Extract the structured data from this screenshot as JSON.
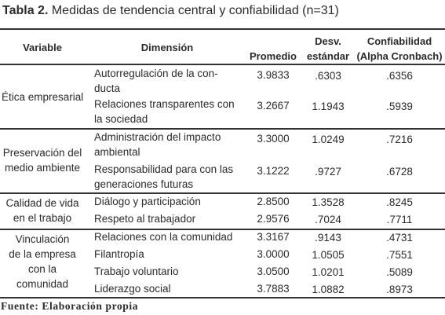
{
  "title": {
    "label": "Tabla 2.",
    "text": "Medidas de tendencia central y confiabilidad (n=31)"
  },
  "headers": {
    "variable": "Variable",
    "dimension": "Dimensión",
    "promedio": "Promedio",
    "desv_line1": "Desv.",
    "desv_line2": "estándar",
    "conf_line1": "Confiabilidad",
    "conf_line2": "(Alpha Cronbach)"
  },
  "groups": [
    {
      "variable": [
        "Ética empresarial"
      ],
      "rows": [
        {
          "dimension": [
            "Autorregulación de la con-",
            "ducta"
          ],
          "promedio": "3.9833",
          "desv": ".6303",
          "conf": ".6356"
        },
        {
          "dimension": [
            "Relaciones transparentes con",
            "la sociedad"
          ],
          "promedio": "3.2667",
          "desv": "1.1943",
          "conf": ".5939"
        }
      ]
    },
    {
      "variable": [
        "Preservación del",
        "medio ambiente"
      ],
      "rows": [
        {
          "dimension": [
            "Administración del impacto",
            "ambiental"
          ],
          "promedio": "3.3000",
          "desv": "1.0249",
          "conf": ".7216"
        },
        {
          "dimension": [
            "Responsabilidad para con las",
            "generaciones futuras"
          ],
          "promedio": "3.1222",
          "desv": ".9727",
          "conf": ".6728"
        }
      ]
    },
    {
      "variable": [
        "Calidad de vida",
        "en el trabajo"
      ],
      "rows": [
        {
          "dimension": [
            "Diálogo y participación"
          ],
          "promedio": "2.8500",
          "desv": "1.3528",
          "conf": ".8245"
        },
        {
          "dimension": [
            "Respeto al trabajador"
          ],
          "promedio": "2.9576",
          "desv": ".7024",
          "conf": ".7711"
        }
      ]
    },
    {
      "variable": [
        "Vinculación",
        "de la empresa",
        "con la",
        "comunidad"
      ],
      "rows": [
        {
          "dimension": [
            "Relaciones con la comunidad"
          ],
          "promedio": "3.3167",
          "desv": ".9143",
          "conf": ".4731"
        },
        {
          "dimension": [
            "Filantropía"
          ],
          "promedio": "3.0000",
          "desv": "1.0505",
          "conf": ".7551"
        },
        {
          "dimension": [
            "Trabajo voluntario"
          ],
          "promedio": "3.0500",
          "desv": "1.0201",
          "conf": ".5089"
        },
        {
          "dimension": [
            "Liderazgo social"
          ],
          "promedio": "3.7883",
          "desv": "1.0882",
          "conf": ".8973"
        }
      ]
    }
  ],
  "footer": "Fuente: Elaboración propia"
}
